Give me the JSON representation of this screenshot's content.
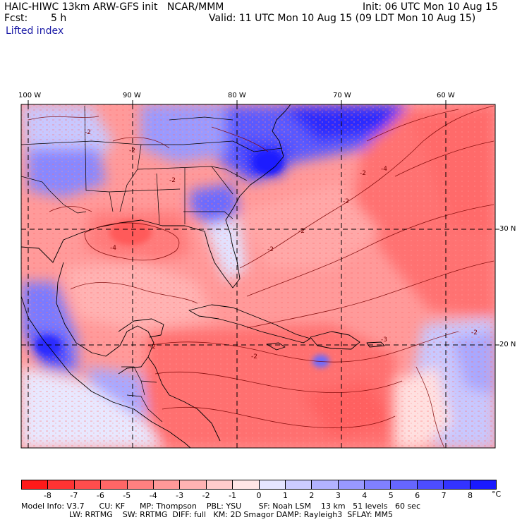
{
  "header": {
    "title_left": "HAIC-HIWC 13km ARW-GFS init   NCAR/MMM",
    "fcst_label": "Fcst:",
    "fcst_value": "5 h",
    "field_name": "Lifted index",
    "init": "Init: 06 UTC Mon 10 Aug 15",
    "valid": "Valid: 11 UTC Mon 10 Aug 15 (09 LDT Mon 10 Aug 15)"
  },
  "map": {
    "lon_labels": [
      "100 W",
      "90 W",
      "80 W",
      "70 W",
      "60 W"
    ],
    "lat_labels": [
      "30 N",
      "20 N"
    ],
    "contour_labels": [
      "-2",
      "-2",
      "-2",
      "-2",
      "-4",
      "-4",
      "-2",
      "-2",
      "-2",
      "-2",
      "-2",
      "-3",
      "-2"
    ]
  },
  "colorbar": {
    "unit": "°C",
    "labels": [
      "-8",
      "-7",
      "-6",
      "-5",
      "-4",
      "-3",
      "-2",
      "-1",
      "0",
      "1",
      "2",
      "3",
      "4",
      "5",
      "6",
      "7",
      "8"
    ],
    "colors": [
      "#ff1a1a",
      "#ff3333",
      "#ff4d4d",
      "#ff6666",
      "#ff8080",
      "#ff9999",
      "#ffb3b3",
      "#ffcccc",
      "#ffe6e6",
      "#e6e6ff",
      "#ccccff",
      "#b3b3ff",
      "#9999ff",
      "#8080ff",
      "#6666ff",
      "#4d4dff",
      "#3333ff",
      "#1a1aff"
    ]
  },
  "footer": {
    "line1": "Model Info: V3.7      CU: KF      MP: Thompson    PBL: YSU       SF: Noah LSM    13 km   51 levels   60 sec",
    "line2": "LW: RRTMG    SW: RRTMG  DIFF: full   KM: 2D Smagor DAMP: Rayleigh3  SFLAY: MM5"
  }
}
